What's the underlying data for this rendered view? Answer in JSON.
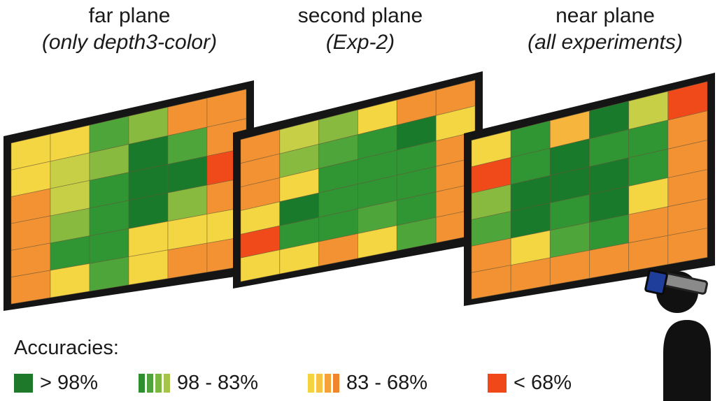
{
  "titles": [
    {
      "main": "far plane",
      "sub": "(only depth3-color)"
    },
    {
      "main": "second plane",
      "sub": "(Exp-2)"
    },
    {
      "main": "near plane",
      "sub": "(all experiments)"
    }
  ],
  "legend": {
    "heading": "Accuracies:",
    "items": [
      {
        "label": "> 98%",
        "colors": [
          "#1e7a2a"
        ]
      },
      {
        "label": "98 - 83%",
        "colors": [
          "#2f8f2e",
          "#4ea33a",
          "#7cb73f",
          "#a6c447"
        ]
      },
      {
        "label": "83 - 68%",
        "colors": [
          "#f3d43f",
          "#f6c441",
          "#f6a136",
          "#f2842c"
        ]
      },
      {
        "label": "< 68%",
        "colors": [
          "#f04818"
        ]
      }
    ]
  },
  "palette": {
    "D": "#1a7a2c",
    "G": "#2f9633",
    "g": "#4ea63a",
    "L": "#88ba3f",
    "y": "#c6cf46",
    "Y": "#f4d542",
    "o": "#f6b53c",
    "O": "#f39232",
    "R": "#f14a1a",
    "frame": "#151515",
    "grid": "#6a5a3a"
  },
  "planes": [
    {
      "grid": [
        "YYgLOO",
        "YyLDgO",
        "OyGDDR",
        "OLGDLO",
        "OGGYYY",
        "OYgYOO"
      ]
    },
    {
      "grid": [
        "OyLYOO",
        "OLgGDY",
        "OYGGGO",
        "YDGGGO",
        "RGGgGO",
        "YYOYgO"
      ]
    },
    {
      "grid": [
        "YGoDyR",
        "RGDGGO",
        "LDDDGO",
        "gDGDYO",
        "OYgGOO",
        "OOOOOO"
      ]
    }
  ]
}
